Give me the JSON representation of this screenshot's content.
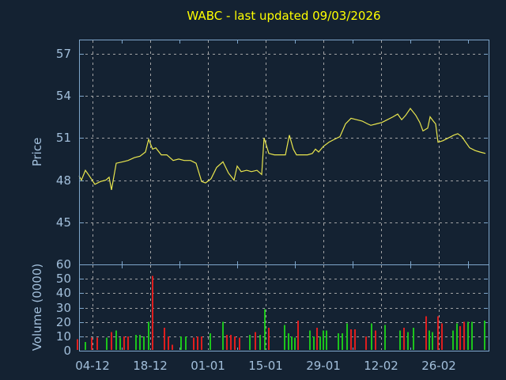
{
  "title": "WABC - last updated 09/03/2026",
  "colors": {
    "background": "#142232",
    "frame": "#7EA6CB",
    "grid": "#B0B0B0",
    "tick_label": "#A2BFDB",
    "title_text": "#FFFF00",
    "price_line": "#E9E64E",
    "volume_up": "#1CC51C",
    "volume_down": "#DF1E1E"
  },
  "chart_data": [
    {
      "type": "line",
      "title": "WABC - last updated 09/03/2026",
      "ylabel": "Price",
      "ylim": [
        42,
        58
      ],
      "yticks": [
        45,
        48,
        51,
        54,
        57
      ],
      "x_tick_labels": [
        "04-12",
        "18-12",
        "01-01",
        "15-01",
        "29-01",
        "12-02",
        "26-02"
      ],
      "grid": true,
      "legend": "none",
      "x_unit": "px",
      "series": [
        {
          "name": "price",
          "color": "#E9E64E",
          "points": [
            [
              100,
              48.3
            ],
            [
              103,
              48.0
            ],
            [
              108,
              48.7
            ],
            [
              113,
              48.3
            ],
            [
              120,
              47.7
            ],
            [
              127,
              47.9
            ],
            [
              134,
              48.0
            ],
            [
              138,
              48.2
            ],
            [
              141,
              47.3
            ],
            [
              147,
              49.2
            ],
            [
              155,
              49.3
            ],
            [
              162,
              49.4
            ],
            [
              170,
              49.6
            ],
            [
              177,
              49.7
            ],
            [
              184,
              50.0
            ],
            [
              188,
              50.9
            ],
            [
              193,
              50.2
            ],
            [
              197,
              50.3
            ],
            [
              204,
              49.8
            ],
            [
              211,
              49.8
            ],
            [
              219,
              49.4
            ],
            [
              226,
              49.5
            ],
            [
              233,
              49.4
            ],
            [
              241,
              49.4
            ],
            [
              248,
              49.2
            ],
            [
              255,
              47.9
            ],
            [
              260,
              47.8
            ],
            [
              267,
              48.1
            ],
            [
              274,
              48.9
            ],
            [
              282,
              49.3
            ],
            [
              289,
              48.5
            ],
            [
              296,
              48.0
            ],
            [
              300,
              49.0
            ],
            [
              305,
              48.6
            ],
            [
              312,
              48.7
            ],
            [
              318,
              48.6
            ],
            [
              325,
              48.7
            ],
            [
              331,
              48.4
            ],
            [
              334,
              51.0
            ],
            [
              340,
              49.9
            ],
            [
              347,
              49.8
            ],
            [
              355,
              49.8
            ],
            [
              361,
              49.8
            ],
            [
              366,
              51.2
            ],
            [
              371,
              50.2
            ],
            [
              375,
              49.8
            ],
            [
              382,
              49.8
            ],
            [
              389,
              49.8
            ],
            [
              395,
              49.9
            ],
            [
              399,
              50.2
            ],
            [
              403,
              50.0
            ],
            [
              409,
              50.4
            ],
            [
              416,
              50.7
            ],
            [
              423,
              50.9
            ],
            [
              430,
              51.1
            ],
            [
              437,
              52.0
            ],
            [
              444,
              52.4
            ],
            [
              451,
              52.3
            ],
            [
              458,
              52.2
            ],
            [
              465,
              52.0
            ],
            [
              469,
              51.9
            ],
            [
              476,
              52.0
            ],
            [
              483,
              52.1
            ],
            [
              490,
              52.3
            ],
            [
              497,
              52.5
            ],
            [
              503,
              52.7
            ],
            [
              508,
              52.3
            ],
            [
              513,
              52.6
            ],
            [
              519,
              53.1
            ],
            [
              526,
              52.6
            ],
            [
              531,
              52.1
            ],
            [
              535,
              51.5
            ],
            [
              541,
              51.7
            ],
            [
              544,
              52.5
            ],
            [
              548,
              52.2
            ],
            [
              551,
              52.0
            ],
            [
              554,
              50.7
            ],
            [
              560,
              50.8
            ],
            [
              567,
              51.0
            ],
            [
              574,
              51.2
            ],
            [
              579,
              51.3
            ],
            [
              584,
              51.1
            ],
            [
              589,
              50.7
            ],
            [
              594,
              50.3
            ],
            [
              601,
              50.1
            ],
            [
              607,
              50.0
            ],
            [
              614,
              49.9
            ]
          ]
        }
      ]
    },
    {
      "type": "bar",
      "ylabel": "Volume (0000)",
      "ylim": [
        0,
        60
      ],
      "yticks": [
        0,
        10,
        20,
        30,
        40,
        50,
        60
      ],
      "grid": true,
      "x_unit": "px",
      "bar_colors": {
        "g": "#1CC51C",
        "r": "#DF1E1E"
      },
      "bars": [
        [
          98,
          8,
          "r"
        ],
        [
          108,
          6,
          "g"
        ],
        [
          116,
          9,
          "r"
        ],
        [
          123,
          9,
          "r"
        ],
        [
          135,
          9,
          "g"
        ],
        [
          141,
          13,
          "r"
        ],
        [
          147,
          14,
          "g"
        ],
        [
          152,
          9,
          "g"
        ],
        [
          157,
          10,
          "r"
        ],
        [
          162,
          10,
          "r"
        ],
        [
          172,
          11,
          "g"
        ],
        [
          177,
          11,
          "g"
        ],
        [
          182,
          10,
          "g"
        ],
        [
          188,
          20,
          "g"
        ],
        [
          193,
          52,
          "r"
        ],
        [
          208,
          16,
          "r"
        ],
        [
          213,
          10,
          "r"
        ],
        [
          218,
          4,
          "r"
        ],
        [
          229,
          10,
          "g"
        ],
        [
          235,
          10,
          "g"
        ],
        [
          245,
          9,
          "r"
        ],
        [
          250,
          10,
          "r"
        ],
        [
          255,
          10,
          "r"
        ],
        [
          266,
          12,
          "g"
        ],
        [
          282,
          20,
          "g"
        ],
        [
          287,
          11,
          "r"
        ],
        [
          292,
          11,
          "r"
        ],
        [
          297,
          10,
          "r"
        ],
        [
          303,
          9,
          "r"
        ],
        [
          316,
          11,
          "g"
        ],
        [
          323,
          13,
          "r"
        ],
        [
          329,
          11,
          "g"
        ],
        [
          335,
          29,
          "g"
        ],
        [
          340,
          16,
          "r"
        ],
        [
          360,
          18,
          "g"
        ],
        [
          365,
          12,
          "g"
        ],
        [
          369,
          10,
          "g"
        ],
        [
          373,
          9,
          "g"
        ],
        [
          377,
          21,
          "r"
        ],
        [
          392,
          14,
          "g"
        ],
        [
          397,
          10,
          "g"
        ],
        [
          401,
          16,
          "r"
        ],
        [
          405,
          10,
          "g"
        ],
        [
          409,
          14,
          "g"
        ],
        [
          413,
          14,
          "g"
        ],
        [
          428,
          12,
          "g"
        ],
        [
          433,
          12,
          "g"
        ],
        [
          439,
          19,
          "g"
        ],
        [
          444,
          15,
          "r"
        ],
        [
          449,
          15,
          "r"
        ],
        [
          463,
          10,
          "r"
        ],
        [
          470,
          19,
          "g"
        ],
        [
          475,
          14,
          "r"
        ],
        [
          487,
          18,
          "g"
        ],
        [
          506,
          14,
          "g"
        ],
        [
          511,
          16,
          "r"
        ],
        [
          516,
          13,
          "g"
        ],
        [
          523,
          16,
          "g"
        ],
        [
          539,
          24,
          "r"
        ],
        [
          543,
          14,
          "g"
        ],
        [
          547,
          13,
          "g"
        ],
        [
          554,
          24,
          "r"
        ],
        [
          559,
          19,
          "r"
        ],
        [
          573,
          14,
          "g"
        ],
        [
          578,
          19,
          "g"
        ],
        [
          582,
          17,
          "r"
        ],
        [
          587,
          20,
          "r"
        ],
        [
          592,
          20,
          "g"
        ],
        [
          597,
          20,
          "g"
        ],
        [
          613,
          21,
          "g"
        ]
      ]
    }
  ]
}
